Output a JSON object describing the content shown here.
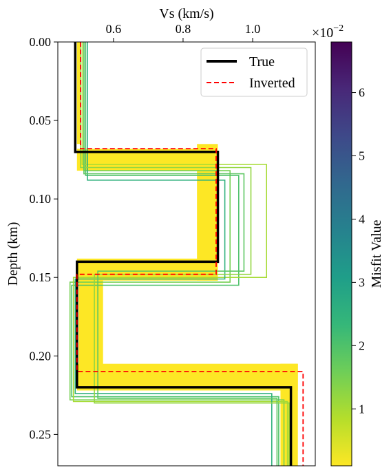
{
  "chart_data": {
    "type": "line",
    "xlabel": "Vs (km/s)",
    "ylabel": "Depth (km)",
    "xlim": [
      0.44,
      1.18
    ],
    "ylim": [
      0.27,
      0.0
    ],
    "x_axis_position": "top",
    "y_inverted": true,
    "grid": false,
    "legend_placement": "top-right",
    "xticks": [
      0.6,
      0.8,
      1.0
    ],
    "xtick_labels": [
      "0.6",
      "0.8",
      "1.0"
    ],
    "yticks": [
      0.0,
      0.05,
      0.1,
      0.15,
      0.2,
      0.25
    ],
    "ytick_labels": [
      "0.00",
      "0.05",
      "0.10",
      "0.15",
      "0.20",
      "0.25"
    ],
    "series": [
      {
        "name": "True",
        "color": "#000000",
        "style": "solid",
        "profile": [
          {
            "vs": 0.49,
            "top": 0.0,
            "bottom": 0.07
          },
          {
            "vs": 0.9,
            "top": 0.07,
            "bottom": 0.14
          },
          {
            "vs": 0.495,
            "top": 0.14,
            "bottom": 0.22
          },
          {
            "vs": 1.11,
            "top": 0.22,
            "bottom": 0.27
          }
        ]
      },
      {
        "name": "Inverted",
        "color": "#ff0000",
        "style": "dashed",
        "profile": [
          {
            "vs": 0.505,
            "top": 0.0,
            "bottom": 0.068
          },
          {
            "vs": 0.895,
            "top": 0.068,
            "bottom": 0.148
          },
          {
            "vs": 0.495,
            "top": 0.148,
            "bottom": 0.21
          },
          {
            "vs": 1.145,
            "top": 0.21,
            "bottom": 0.27
          }
        ]
      }
    ],
    "ensemble": {
      "description_encoding": "misfit",
      "band": {
        "color": "#fde725",
        "layers": [
          {
            "vs_min": 0.495,
            "vs_max": 0.505,
            "top": 0.0,
            "bottom": 0.065
          },
          {
            "vs_min": 0.84,
            "vs_max": 0.9,
            "top": 0.065,
            "bottom": 0.152
          },
          {
            "vs_min": 0.5,
            "vs_max": 0.57,
            "top": 0.14,
            "bottom": 0.222
          },
          {
            "vs_min": 1.08,
            "vs_max": 1.13,
            "top": 0.205,
            "bottom": 0.27
          }
        ]
      },
      "outliers": [
        {
          "misfit": 0.015,
          "profile": [
            {
              "vs": 0.515,
              "bottom": 0.082
            },
            {
              "vs": 0.935,
              "bottom": 0.153
            },
            {
              "vs": 0.475,
              "bottom": 0.228
            },
            {
              "vs": 1.09
            }
          ]
        },
        {
          "misfit": 0.02,
          "profile": [
            {
              "vs": 0.52,
              "bottom": 0.085
            },
            {
              "vs": 0.96,
              "bottom": 0.155
            },
            {
              "vs": 0.48,
              "bottom": 0.226
            },
            {
              "vs": 1.075
            }
          ]
        },
        {
          "misfit": 0.01,
          "profile": [
            {
              "vs": 0.51,
              "bottom": 0.078
            },
            {
              "vs": 1.04,
              "bottom": 0.15
            },
            {
              "vs": 0.485,
              "bottom": 0.229
            },
            {
              "vs": 1.1
            }
          ]
        },
        {
          "misfit": 0.025,
          "profile": [
            {
              "vs": 0.525,
              "bottom": 0.088
            },
            {
              "vs": 0.92,
              "bottom": 0.151
            },
            {
              "vs": 0.49,
              "bottom": 0.224
            },
            {
              "vs": 1.055
            }
          ]
        },
        {
          "misfit": 0.012,
          "profile": [
            {
              "vs": 0.505,
              "bottom": 0.08
            },
            {
              "vs": 0.995,
              "bottom": 0.148
            },
            {
              "vs": 0.545,
              "bottom": 0.23
            },
            {
              "vs": 1.105
            }
          ]
        },
        {
          "misfit": 0.018,
          "profile": [
            {
              "vs": 0.515,
              "bottom": 0.084
            },
            {
              "vs": 0.975,
              "bottom": 0.146
            },
            {
              "vs": 0.555,
              "bottom": 0.227
            },
            {
              "vs": 1.07
            }
          ]
        }
      ]
    },
    "colorbar": {
      "label": "Misfit Value",
      "range": [
        0.001,
        0.068
      ],
      "ticks": [
        0.01,
        0.02,
        0.03,
        0.04,
        0.05,
        0.06
      ],
      "tick_labels": [
        "1",
        "2",
        "3",
        "4",
        "5",
        "6"
      ],
      "offset_text": "×10",
      "offset_exponent": "−2",
      "colormap": "viridis_r",
      "stops": [
        "#fde725",
        "#b5de2b",
        "#6ece58",
        "#35b779",
        "#1f9e89",
        "#26828e",
        "#31688e",
        "#3e4989",
        "#482878",
        "#440154"
      ]
    }
  }
}
